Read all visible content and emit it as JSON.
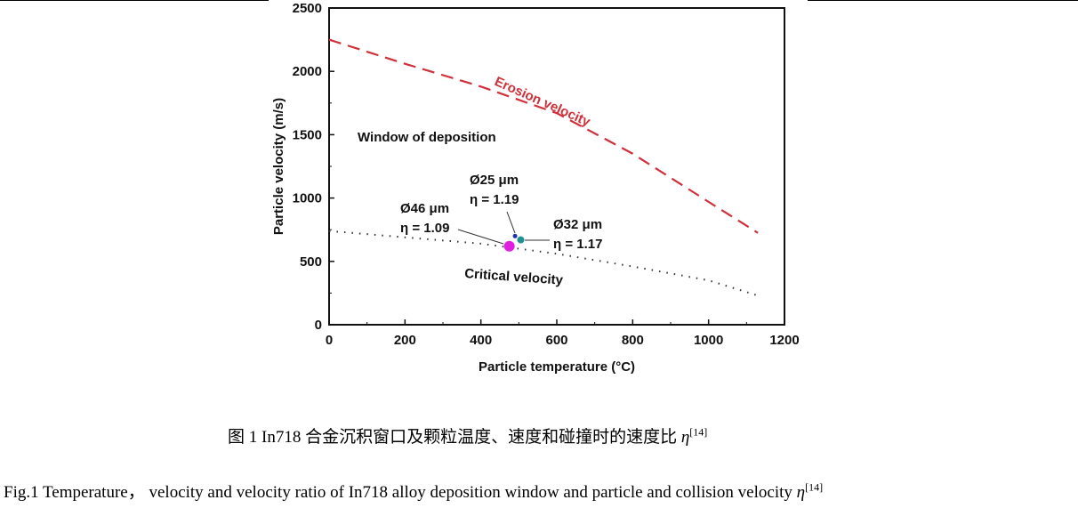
{
  "chart_data": {
    "type": "line",
    "xlabel": "Particle temperature (°C)",
    "ylabel": "Particle velocity (m/s)",
    "xlim": [
      0,
      1200
    ],
    "ylim": [
      0,
      2500
    ],
    "xticks": [
      "0",
      "200",
      "400",
      "600",
      "800",
      "1000",
      "1200"
    ],
    "yticks": [
      "0",
      "500",
      "1000",
      "1500",
      "2000",
      "2500"
    ],
    "grid": false,
    "series": [
      {
        "name": "Erosion velocity",
        "style": "dashed",
        "color": "#d0303a",
        "x": [
          0,
          200,
          400,
          600,
          800,
          1000,
          1130
        ],
        "y": [
          2250,
          2060,
          1880,
          1670,
          1350,
          970,
          725
        ]
      },
      {
        "name": "Critical velocity",
        "style": "dotted",
        "color": "#333333",
        "x": [
          0,
          200,
          400,
          600,
          800,
          1000,
          1130
        ],
        "y": [
          740,
          690,
          640,
          560,
          460,
          350,
          230
        ]
      }
    ],
    "points": [
      {
        "label": "Ø46 μm",
        "eta": "η = 1.09",
        "x": 475,
        "y": 620,
        "color": "#e020e0"
      },
      {
        "label": "Ø25 μm",
        "eta": "η = 1.19",
        "x": 490,
        "y": 700,
        "color": "#2030b0"
      },
      {
        "label": "Ø32 μm",
        "eta": "η = 1.17",
        "x": 505,
        "y": 670,
        "color": "#209090"
      }
    ],
    "annotations": [
      "Window of deposition"
    ]
  },
  "caption": {
    "cn": "图 1 In718 合金沉积窗口及颗粒温度、速度和碰撞时的速度比",
    "en": "Fig.1 Temperature， velocity and velocity ratio of In718 alloy deposition window and particle and collision velocity",
    "eta": "η",
    "ref": "[14]"
  }
}
